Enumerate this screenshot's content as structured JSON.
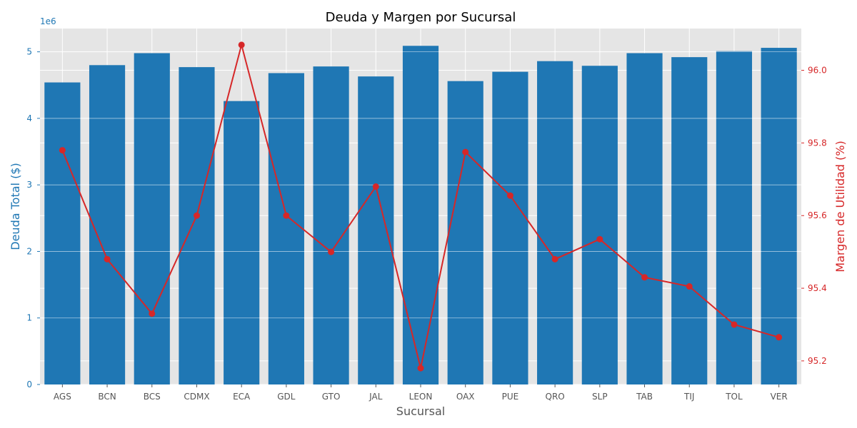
{
  "chart_data": {
    "type": "bar",
    "title": "Deuda y Margen por Sucursal",
    "xlabel": "Sucursal",
    "ylabel_left": "Deuda Total ($)",
    "ylabel_right": "Margen de Utilidad (%)",
    "left_offset_label": "1e6",
    "categories": [
      "AGS",
      "BCN",
      "BCS",
      "CDMX",
      "ECA",
      "GDL",
      "GTO",
      "JAL",
      "LEON",
      "OAX",
      "PUE",
      "QRO",
      "SLP",
      "TAB",
      "TIJ",
      "TOL",
      "VER"
    ],
    "series": [
      {
        "type": "bar",
        "axis": "left",
        "color": "#1f77b4",
        "values": [
          4540000,
          4800000,
          4980000,
          4770000,
          4260000,
          4680000,
          4780000,
          4630000,
          5090000,
          4560000,
          4700000,
          4860000,
          4790000,
          4980000,
          4920000,
          5010000,
          5060000
        ]
      },
      {
        "type": "line",
        "axis": "right",
        "color": "#d62728",
        "values": [
          95.78,
          95.48,
          95.33,
          95.6,
          96.07,
          95.6,
          95.5,
          95.68,
          95.18,
          95.775,
          95.655,
          95.48,
          95.535,
          95.43,
          95.405,
          95.3,
          95.265
        ]
      }
    ],
    "ylim_left": [
      0,
      5350000
    ],
    "ylim_right": [
      95.135,
      96.115
    ],
    "left_ticks": [
      0,
      1000000,
      2000000,
      3000000,
      4000000,
      5000000
    ],
    "left_tick_labels": [
      "0",
      "1",
      "2",
      "3",
      "4",
      "5"
    ],
    "right_ticks": [
      95.2,
      95.4,
      95.6,
      95.8,
      96.0
    ],
    "right_tick_labels": [
      "95.2",
      "95.4",
      "95.6",
      "95.8",
      "96.0"
    ],
    "grid": true,
    "colors": {
      "plot_background": "#e5e5e5",
      "grid": "#ffffff",
      "left_axis": "#1f77b4",
      "right_axis": "#d62728",
      "tick_text": "#555555"
    }
  }
}
